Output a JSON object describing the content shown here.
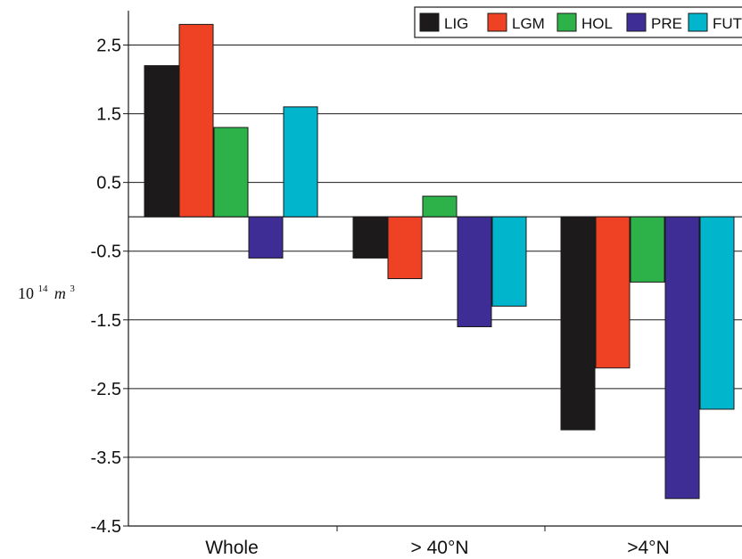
{
  "chart_data": {
    "type": "bar",
    "categories": [
      "Whole",
      "> 40°N",
      ">4°N"
    ],
    "series": [
      {
        "name": "LIG",
        "color": "#1c1a1a",
        "values": [
          2.2,
          -0.6,
          -3.1
        ]
      },
      {
        "name": "LGM",
        "color": "#ef4123",
        "values": [
          2.8,
          -0.9,
          -2.2
        ]
      },
      {
        "name": "HOL",
        "color": "#2db24a",
        "values": [
          1.3,
          0.3,
          -0.95
        ]
      },
      {
        "name": "PRE",
        "color": "#3f2d96",
        "values": [
          -0.6,
          -1.6,
          -4.1
        ]
      },
      {
        "name": "FUT",
        "color": "#00b5cc",
        "values": [
          1.6,
          -1.3,
          -2.8
        ]
      }
    ],
    "ylim": [
      -4.5,
      3.0
    ],
    "yticks": [
      2.5,
      1.5,
      0.5,
      -0.5,
      -1.5,
      -2.5,
      -3.5,
      -4.5
    ],
    "ytick_labels": [
      "2.5",
      "1.5",
      "0.5",
      "-0.5",
      "-1.5",
      "-2.5",
      "-3.5",
      "-4.5"
    ],
    "ylabel": {
      "base": "10",
      "exponent": "14",
      "unit": "m",
      "unit_exponent": "3"
    },
    "grid": true,
    "legend_position": "top-right"
  }
}
